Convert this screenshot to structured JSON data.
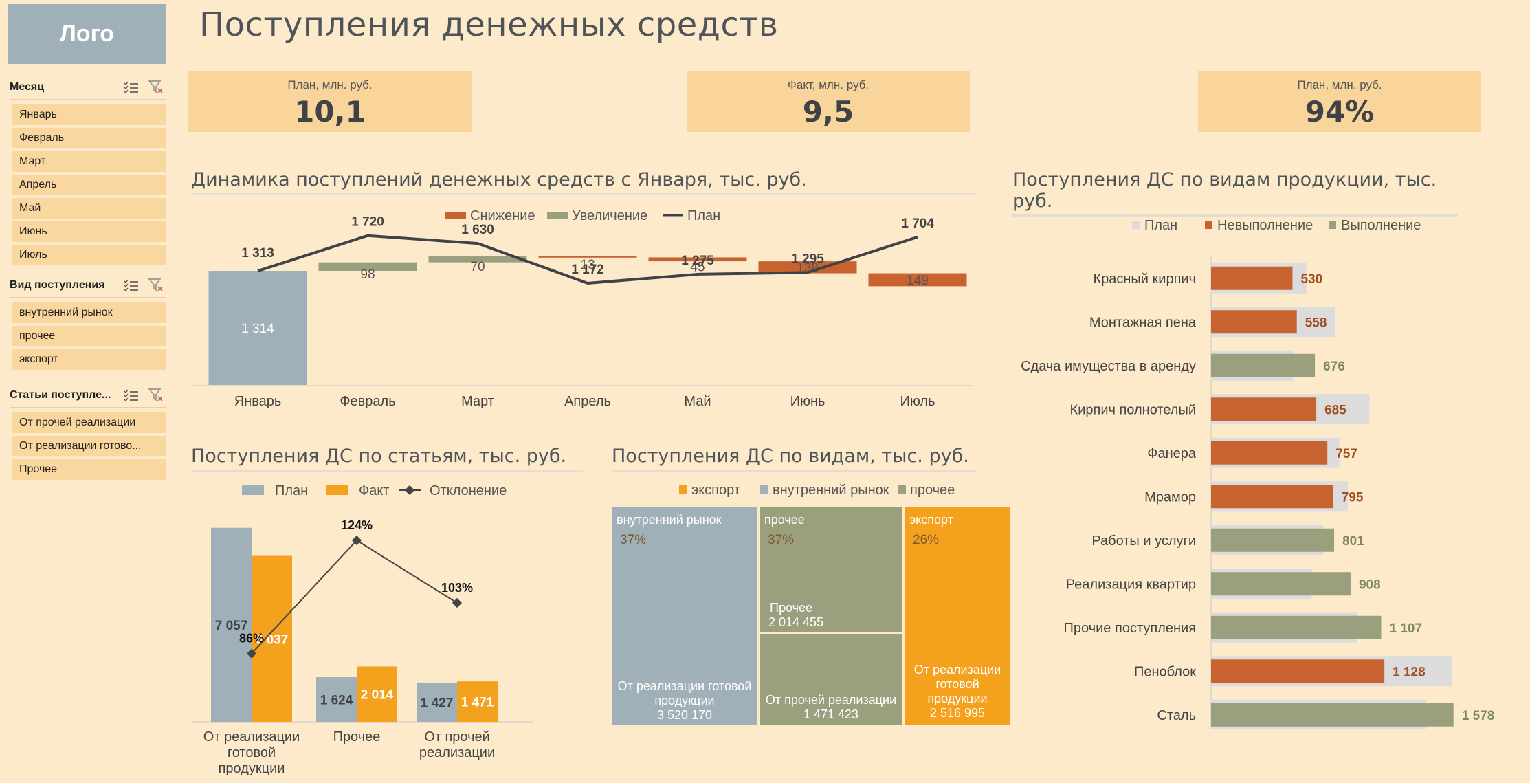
{
  "logo": "Лого",
  "page_title": "Поступления денежных средств",
  "slicers": [
    {
      "title": "Месяц",
      "items": [
        "Январь",
        "Февраль",
        "Март",
        "Апрель",
        "Май",
        "Июнь",
        "Июль"
      ]
    },
    {
      "title": "Вид поступления",
      "items": [
        "внутренний рынок",
        "прочее",
        "экспорт"
      ]
    },
    {
      "title": "Статьи поступле...",
      "items": [
        "От прочей реализации",
        "От реализации готово...",
        "Прочее"
      ]
    }
  ],
  "kpis": [
    {
      "label": "План, млн. руб.",
      "value": "10,1"
    },
    {
      "label": "Факт, млн. руб.",
      "value": "9,5"
    },
    {
      "label": "План, млн. руб.",
      "value": "94%"
    }
  ],
  "colors": {
    "decrease": "#C8622F",
    "increase": "#9AA07D",
    "plan_line": "#3F4347",
    "plan_bar": "#9FB0B8",
    "fact_bar": "#F4A11D",
    "plan_ghost": "#DCDCDC",
    "label_red": "#A34E22",
    "label_green": "#7F8A5B"
  },
  "sections": {
    "waterfall": "Динамика поступлений денежных средств с Января, тыс. руб.",
    "articles": "Поступления ДС по статьям, тыс. руб.",
    "treemap": "Поступления ДС по видам, тыс. руб.",
    "products": "Поступления ДС по видам продукции, тыс. руб."
  },
  "chart_data": [
    {
      "type": "bar",
      "subtype": "waterfall",
      "categories": [
        "Январь",
        "Февраль",
        "Март",
        "Апрель",
        "Май",
        "Июнь",
        "Июль"
      ],
      "legend": [
        "Снижение",
        "Увеличение",
        "План"
      ],
      "start_value": 1314,
      "start_label": "1 314",
      "deltas": [
        {
          "value": 98,
          "label": "98",
          "kind": "increase"
        },
        {
          "value": 70,
          "label": "70",
          "kind": "increase"
        },
        {
          "value": -13,
          "label": "13",
          "kind": "decrease"
        },
        {
          "value": -45,
          "label": "45",
          "kind": "decrease"
        },
        {
          "value": -138,
          "label": "138",
          "kind": "decrease"
        },
        {
          "value": -149,
          "label": "149",
          "kind": "decrease"
        }
      ],
      "plan": [
        1313,
        1720,
        1630,
        1172,
        1275,
        1295,
        1704
      ],
      "plan_labels": [
        "1 313",
        "1 720",
        "1 630",
        "1 172",
        "1 275",
        "1 295",
        "1 704"
      ],
      "ylim": [
        0,
        1900
      ]
    },
    {
      "type": "bar",
      "categories": [
        [
          "От реализации",
          "готовой",
          "продукции"
        ],
        [
          "Прочее"
        ],
        [
          "От прочей",
          "реализации"
        ]
      ],
      "legend": [
        "План",
        "Факт",
        "Отклонение"
      ],
      "series": [
        {
          "name": "План",
          "values": [
            7057,
            1624,
            1427
          ],
          "labels": [
            "7 057",
            "1 624",
            "1 427"
          ]
        },
        {
          "name": "Факт",
          "values": [
            6037,
            2014,
            1471
          ],
          "labels": [
            "6 037",
            "2 014",
            "1 471"
          ]
        }
      ],
      "deviation": [
        0.86,
        1.24,
        1.03
      ],
      "deviation_labels": [
        "86%",
        "124%",
        "103%"
      ],
      "ylim": [
        0,
        7500
      ]
    },
    {
      "type": "treemap",
      "legend": [
        "экспорт",
        "внутренний рынок",
        "прочее"
      ],
      "groups": [
        {
          "name": "внутренний рынок",
          "pct": "37%",
          "items": [
            {
              "name": "От реализации готовой продукции",
              "value": "3 520 170"
            }
          ]
        },
        {
          "name": "прочее",
          "pct": "37%",
          "items": [
            {
              "name": "Прочее",
              "value": "2 014 455"
            },
            {
              "name": "От прочей реализации",
              "value": "1 471 423"
            }
          ]
        },
        {
          "name": "экспорт",
          "pct": "26%",
          "items": [
            {
              "name": "От реализации готовой продукции",
              "value": "2 516 995"
            }
          ]
        }
      ]
    },
    {
      "type": "bar",
      "orientation": "horizontal",
      "legend": [
        "План",
        "Невыполнение",
        "Выполнение"
      ],
      "categories": [
        "Красный кирпич",
        "Монтажная пена",
        "Сдача имущества в аренду",
        "Кирпич полнотелый",
        "Фанера",
        "Мрамор",
        "Работы и услуги",
        "Реализация квартир",
        "Прочие поступления",
        "Пеноблок",
        "Сталь"
      ],
      "fact": [
        530,
        558,
        676,
        685,
        757,
        795,
        801,
        908,
        1107,
        1128,
        1578
      ],
      "fact_labels": [
        "530",
        "558",
        "676",
        "685",
        "757",
        "795",
        "801",
        "908",
        "1 107",
        "1 128",
        "1 578"
      ],
      "plan": [
        620,
        810,
        535,
        1030,
        835,
        890,
        730,
        655,
        950,
        1570,
        1400
      ],
      "status": [
        "Невыполнение",
        "Невыполнение",
        "Выполнение",
        "Невыполнение",
        "Невыполнение",
        "Невыполнение",
        "Выполнение",
        "Выполнение",
        "Выполнение",
        "Невыполнение",
        "Выполнение"
      ],
      "xlim": [
        0,
        1700
      ]
    }
  ]
}
